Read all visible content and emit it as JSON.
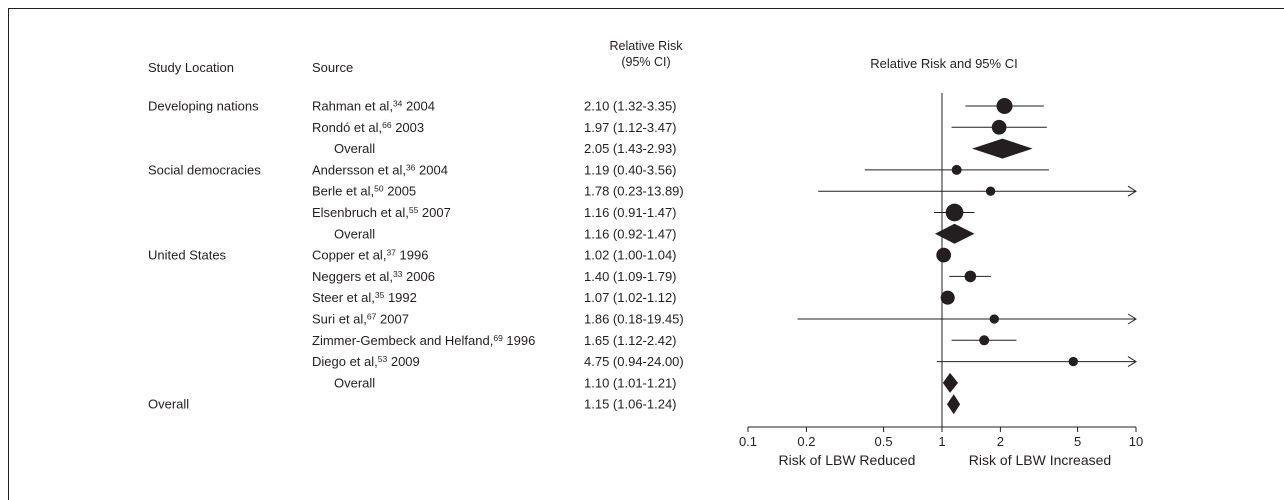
{
  "chart_data": {
    "type": "forest",
    "headers": {
      "location": "Study Location",
      "source": "Source",
      "rr_line1": "Relative Risk",
      "rr_line2": "(95% CI)",
      "plot_title": "Relative Risk and 95% CI"
    },
    "x_scale": "log",
    "x_ticks": [
      0.1,
      0.2,
      0.5,
      1,
      2,
      5,
      10
    ],
    "x_tick_labels": [
      "0.1",
      "0.2",
      "0.5",
      "1",
      "2",
      "5",
      "10"
    ],
    "xlim": [
      0.1,
      10
    ],
    "reference_line": 1,
    "xlabel_left": "Risk of LBW Reduced",
    "xlabel_right": "Risk of LBW Increased",
    "rows": [
      {
        "group": "Developing nations",
        "author": "Rahman et al,",
        "ref": "34",
        "year": "2004",
        "rr_text": "2.10 (1.32-3.35)",
        "rr": 2.1,
        "lo": 1.32,
        "hi": 3.35,
        "kind": "study",
        "weight": 1.0
      },
      {
        "group": "",
        "author": "Rondó et al,",
        "ref": "66",
        "year": "2003",
        "rr_text": "1.97 (1.12-3.47)",
        "rr": 1.97,
        "lo": 1.12,
        "hi": 3.47,
        "kind": "study",
        "weight": 0.8
      },
      {
        "group": "",
        "author": "Overall",
        "ref": "",
        "year": "",
        "rr_text": "2.05 (1.43-2.93)",
        "rr": 2.05,
        "lo": 1.43,
        "hi": 2.93,
        "kind": "overall"
      },
      {
        "group": "Social democracies",
        "author": "Andersson et al,",
        "ref": "36",
        "year": "2004",
        "rr_text": "1.19 (0.40-3.56)",
        "rr": 1.19,
        "lo": 0.4,
        "hi": 3.56,
        "kind": "study",
        "weight": 0.25
      },
      {
        "group": "",
        "author": "Berle et al,",
        "ref": "50",
        "year": "2005",
        "rr_text": "1.78 (0.23-13.89)",
        "rr": 1.78,
        "lo": 0.23,
        "hi": 13.89,
        "kind": "study",
        "weight": 0.2
      },
      {
        "group": "",
        "author": "Elsenbruch et al,",
        "ref": "55",
        "year": "2007",
        "rr_text": "1.16 (0.91-1.47)",
        "rr": 1.16,
        "lo": 0.91,
        "hi": 1.47,
        "kind": "study",
        "weight": 1.3
      },
      {
        "group": "",
        "author": "Overall",
        "ref": "",
        "year": "",
        "rr_text": "1.16 (0.92-1.47)",
        "rr": 1.16,
        "lo": 0.92,
        "hi": 1.47,
        "kind": "overall"
      },
      {
        "group": "United States",
        "author": "Copper et al,",
        "ref": "37",
        "year": "1996",
        "rr_text": "1.02 (1.00-1.04)",
        "rr": 1.02,
        "lo": 1.0,
        "hi": 1.04,
        "kind": "study",
        "weight": 0.8
      },
      {
        "group": "",
        "author": "Neggers et al,",
        "ref": "33",
        "year": "2006",
        "rr_text": "1.40 (1.09-1.79)",
        "rr": 1.4,
        "lo": 1.09,
        "hi": 1.79,
        "kind": "study",
        "weight": 0.4
      },
      {
        "group": "",
        "author": "Steer et al,",
        "ref": "35",
        "year": "1992",
        "rr_text": "1.07 (1.02-1.12)",
        "rr": 1.07,
        "lo": 1.02,
        "hi": 1.12,
        "kind": "study",
        "weight": 0.7
      },
      {
        "group": "",
        "author": "Suri et al,",
        "ref": "67",
        "year": "2007",
        "rr_text": "1.86 (0.18-19.45)",
        "rr": 1.86,
        "lo": 0.18,
        "hi": 19.45,
        "kind": "study",
        "weight": 0.2
      },
      {
        "group": "",
        "author": "Zimmer-Gembeck and Helfand,",
        "ref": "69",
        "year": "1996",
        "rr_text": "1.65 (1.12-2.42)",
        "rr": 1.65,
        "lo": 1.12,
        "hi": 2.42,
        "kind": "study",
        "weight": 0.25
      },
      {
        "group": "",
        "author": "Diego et al,",
        "ref": "53",
        "year": "2009",
        "rr_text": "4.75 (0.94-24.00)",
        "rr": 4.75,
        "lo": 0.94,
        "hi": 24.0,
        "kind": "study",
        "weight": 0.2
      },
      {
        "group": "",
        "author": "Overall",
        "ref": "",
        "year": "",
        "rr_text": "1.10 (1.01-1.21)",
        "rr": 1.1,
        "lo": 1.01,
        "hi": 1.21,
        "kind": "overall"
      },
      {
        "group": "Overall",
        "author": "",
        "ref": "",
        "year": "",
        "rr_text": "1.15 (1.06-1.24)",
        "rr": 1.15,
        "lo": 1.06,
        "hi": 1.24,
        "kind": "overall"
      }
    ],
    "colors": {
      "ink": "#231f20",
      "background": "#ffffff"
    }
  }
}
